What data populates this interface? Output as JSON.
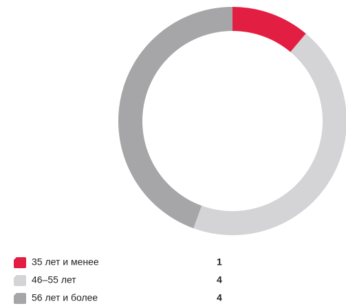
{
  "chart_data": {
    "type": "pie",
    "donut": true,
    "categories": [
      "35 лет и менее",
      "46–55 лет",
      "56 лет и более"
    ],
    "values": [
      1,
      4,
      4
    ],
    "colors": [
      "#e31e43",
      "#d4d4d6",
      "#a6a6a8"
    ]
  }
}
